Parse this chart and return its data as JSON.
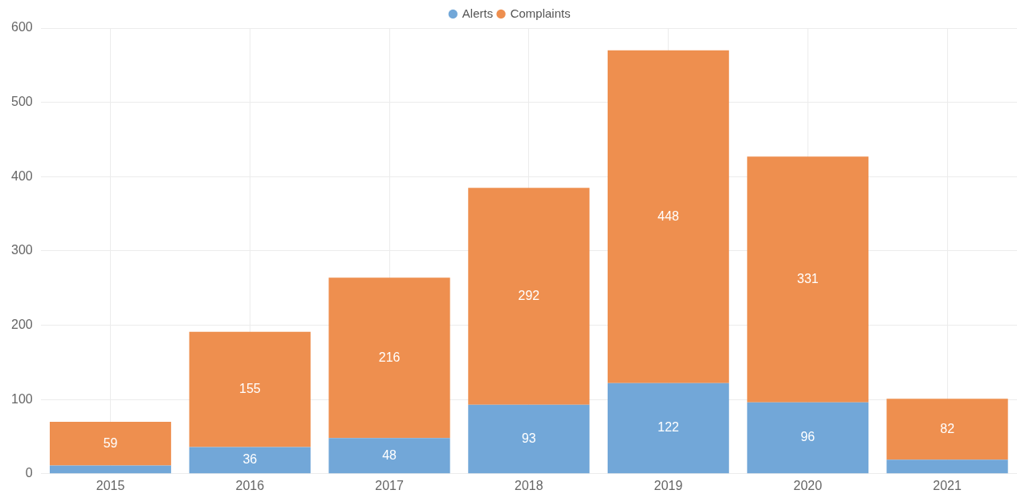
{
  "chart_data": {
    "type": "bar",
    "stacked": true,
    "categories": [
      "2015",
      "2016",
      "2017",
      "2018",
      "2019",
      "2020",
      "2021"
    ],
    "series": [
      {
        "name": "Alerts",
        "color": "#72a7d8",
        "values": [
          11,
          36,
          48,
          93,
          122,
          96,
          19
        ],
        "value_labels": [
          null,
          "36",
          "48",
          "93",
          "122",
          "96",
          null
        ]
      },
      {
        "name": "Complaints",
        "color": "#ee8f4f",
        "values": [
          59,
          155,
          216,
          292,
          448,
          331,
          82
        ],
        "value_labels": [
          "59",
          "155",
          "216",
          "292",
          "448",
          "331",
          "82"
        ]
      }
    ],
    "ylim": [
      0,
      600
    ],
    "yticks": [
      0,
      100,
      200,
      300,
      400,
      500,
      600
    ],
    "grid": true,
    "legend": "top",
    "marker": "circle"
  }
}
